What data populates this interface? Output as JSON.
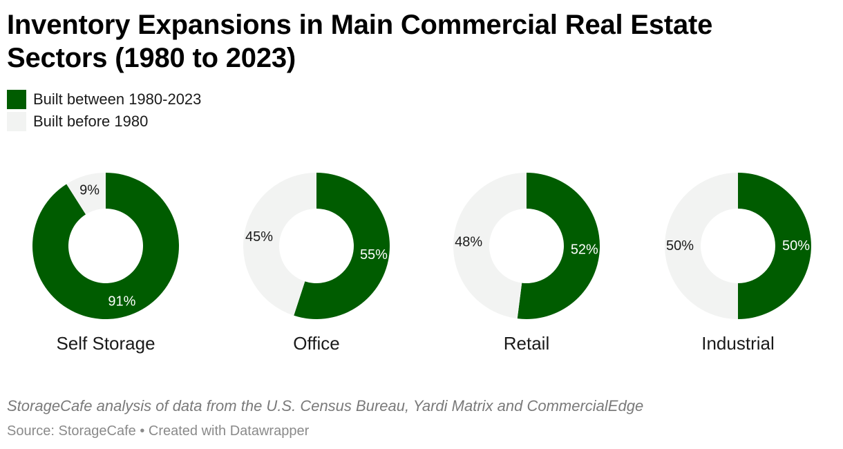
{
  "title": "Inventory Expansions in Main Commercial Real Estate Sectors (1980 to 2023)",
  "legend": [
    {
      "label": "Built between 1980-2023",
      "color": "#005c00"
    },
    {
      "label": "Built before 1980",
      "color": "#f2f3f2"
    }
  ],
  "notes": "StorageCafe analysis of data from the U.S. Census Bureau, Yardi Matrix and CommercialEdge",
  "footer": "Source: StorageCafe • Created with Datawrapper",
  "chart_data": [
    {
      "type": "pie",
      "title": "Self Storage",
      "categories": [
        "Built between 1980-2023",
        "Built before 1980"
      ],
      "values": [
        91,
        9
      ],
      "labels": [
        "91%",
        "9%"
      ]
    },
    {
      "type": "pie",
      "title": "Office",
      "categories": [
        "Built between 1980-2023",
        "Built before 1980"
      ],
      "values": [
        55,
        45
      ],
      "labels": [
        "55%",
        "45%"
      ]
    },
    {
      "type": "pie",
      "title": "Retail",
      "categories": [
        "Built between 1980-2023",
        "Built before 1980"
      ],
      "values": [
        52,
        48
      ],
      "labels": [
        "52%",
        "48%"
      ]
    },
    {
      "type": "pie",
      "title": "Industrial",
      "categories": [
        "Built between 1980-2023",
        "Built before 1980"
      ],
      "values": [
        50,
        50
      ],
      "labels": [
        "50%",
        "50%"
      ]
    }
  ]
}
